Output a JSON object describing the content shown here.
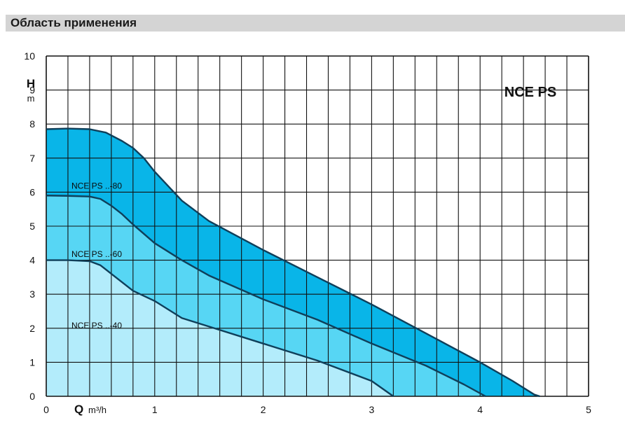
{
  "header": {
    "title": "Область применения"
  },
  "chart_data": {
    "type": "area",
    "title": "NCE PS",
    "ylabel": "H",
    "yunit": "m",
    "xlabel": "Q",
    "xunit": "m³/h",
    "xlim": [
      0,
      5
    ],
    "ylim": [
      0,
      10
    ],
    "xticks": [
      "0",
      "1",
      "2",
      "3",
      "4",
      "5"
    ],
    "yticks": [
      "0",
      "1",
      "2",
      "3",
      "4",
      "5",
      "6",
      "7",
      "8",
      "9",
      "10"
    ],
    "grid": true,
    "series": [
      {
        "name": "NCE PS ..-80",
        "color": "#09b5e8",
        "points": [
          [
            0,
            7.85
          ],
          [
            0.2,
            7.87
          ],
          [
            0.4,
            7.85
          ],
          [
            0.55,
            7.75
          ],
          [
            0.7,
            7.5
          ],
          [
            0.8,
            7.3
          ],
          [
            0.9,
            7.0
          ],
          [
            1.0,
            6.6
          ],
          [
            1.25,
            5.75
          ],
          [
            1.5,
            5.15
          ],
          [
            2.0,
            4.3
          ],
          [
            2.5,
            3.5
          ],
          [
            3.0,
            2.7
          ],
          [
            3.5,
            1.85
          ],
          [
            4.0,
            1.0
          ],
          [
            4.3,
            0.45
          ],
          [
            4.5,
            0.05
          ],
          [
            4.55,
            0
          ]
        ]
      },
      {
        "name": "NCE PS ..-60",
        "color": "#57d6f4",
        "points": [
          [
            0,
            5.9
          ],
          [
            0.2,
            5.89
          ],
          [
            0.4,
            5.87
          ],
          [
            0.5,
            5.8
          ],
          [
            0.6,
            5.6
          ],
          [
            0.7,
            5.35
          ],
          [
            0.8,
            5.05
          ],
          [
            1.0,
            4.5
          ],
          [
            1.25,
            4.0
          ],
          [
            1.5,
            3.55
          ],
          [
            2.0,
            2.85
          ],
          [
            2.5,
            2.25
          ],
          [
            3.0,
            1.55
          ],
          [
            3.5,
            0.9
          ],
          [
            3.85,
            0.35
          ],
          [
            4.05,
            0
          ]
        ]
      },
      {
        "name": "NCE PS ..-40",
        "color": "#b3ecfb",
        "points": [
          [
            0,
            4.0
          ],
          [
            0.2,
            4.0
          ],
          [
            0.4,
            3.97
          ],
          [
            0.5,
            3.85
          ],
          [
            0.6,
            3.6
          ],
          [
            0.7,
            3.35
          ],
          [
            0.8,
            3.1
          ],
          [
            1.0,
            2.8
          ],
          [
            1.25,
            2.3
          ],
          [
            1.5,
            2.05
          ],
          [
            2.0,
            1.55
          ],
          [
            2.5,
            1.05
          ],
          [
            3.0,
            0.45
          ],
          [
            3.2,
            0
          ]
        ]
      }
    ],
    "stroke_color": "#0f3f5a"
  }
}
